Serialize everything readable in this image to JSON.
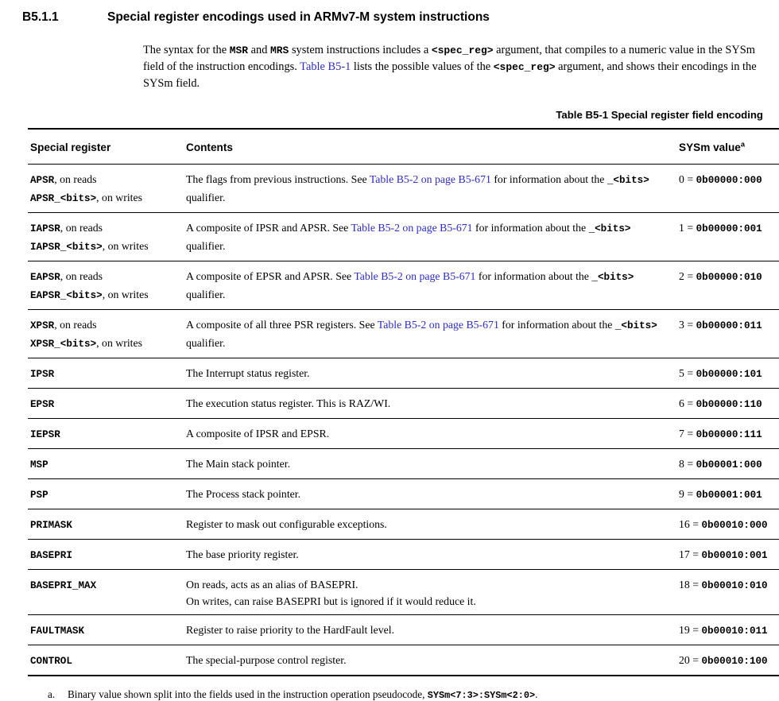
{
  "colors": {
    "link": "#2b2bcd"
  },
  "heading": {
    "number": "B5.1.1",
    "title": "Special register encodings used in ARMv7-M system instructions"
  },
  "intro": [
    {
      "t": "The syntax for the "
    },
    {
      "t": "MSR",
      "c": "mono"
    },
    {
      "t": " and "
    },
    {
      "t": "MRS",
      "c": "mono"
    },
    {
      "t": " system instructions includes a "
    },
    {
      "t": "<spec_reg>",
      "c": "mono"
    },
    {
      "t": " argument, that compiles to a numeric value in the SYSm field of the instruction encodings. "
    },
    {
      "t": "Table B5-1",
      "c": "link"
    },
    {
      "t": " lists the possible values of the "
    },
    {
      "t": "<spec_reg>",
      "c": "mono"
    },
    {
      "t": " argument, and shows their encodings in the SYSm field."
    }
  ],
  "table": {
    "caption": "Table B5-1 Special register field encoding",
    "headers": [
      [
        {
          "t": "Special register"
        }
      ],
      [
        {
          "t": "Contents"
        }
      ],
      [
        {
          "t": "SYSm value"
        },
        {
          "t": "a",
          "c": "sup"
        }
      ]
    ],
    "rows": [
      {
        "register": [
          {
            "t": "APSR",
            "c": "mono"
          },
          {
            "t": ", on reads"
          },
          {
            "br": true
          },
          {
            "t": "APSR_<bits>",
            "c": "mono"
          },
          {
            "t": ", on writes"
          }
        ],
        "contents": [
          {
            "t": "The flags from previous instructions. See "
          },
          {
            "t": "Table B5-2 on page B5-671",
            "c": "link"
          },
          {
            "t": " for information about the "
          },
          {
            "t": "_<bits>",
            "c": "mono"
          },
          {
            "t": " qualifier."
          }
        ],
        "sysm": [
          {
            "t": "0 = "
          },
          {
            "t": "0b00000:000",
            "c": "mono"
          }
        ]
      },
      {
        "register": [
          {
            "t": "IAPSR",
            "c": "mono"
          },
          {
            "t": ", on reads"
          },
          {
            "br": true
          },
          {
            "t": "IAPSR_<bits>",
            "c": "mono"
          },
          {
            "t": ", on writes"
          }
        ],
        "contents": [
          {
            "t": "A composite of IPSR and APSR. See "
          },
          {
            "t": "Table B5-2 on page B5-671",
            "c": "link"
          },
          {
            "t": " for information about the "
          },
          {
            "t": "_<bits>",
            "c": "mono"
          },
          {
            "t": " qualifier."
          }
        ],
        "sysm": [
          {
            "t": "1 = "
          },
          {
            "t": "0b00000:001",
            "c": "mono"
          }
        ]
      },
      {
        "register": [
          {
            "t": "EAPSR",
            "c": "mono"
          },
          {
            "t": ", on reads"
          },
          {
            "br": true
          },
          {
            "t": "EAPSR_<bits>",
            "c": "mono"
          },
          {
            "t": ", on writes"
          }
        ],
        "contents": [
          {
            "t": "A composite of EPSR and APSR. See "
          },
          {
            "t": "Table B5-2 on page B5-671",
            "c": "link"
          },
          {
            "t": " for information about the "
          },
          {
            "t": "_<bits>",
            "c": "mono"
          },
          {
            "t": " qualifier."
          }
        ],
        "sysm": [
          {
            "t": "2 = "
          },
          {
            "t": "0b00000:010",
            "c": "mono"
          }
        ]
      },
      {
        "register": [
          {
            "t": "XPSR",
            "c": "mono"
          },
          {
            "t": ", on reads"
          },
          {
            "br": true
          },
          {
            "t": "XPSR_<bits>",
            "c": "mono"
          },
          {
            "t": ", on writes"
          }
        ],
        "contents": [
          {
            "t": "A composite of all three PSR registers. See "
          },
          {
            "t": "Table B5-2 on page B5-671",
            "c": "link"
          },
          {
            "t": " for information about the "
          },
          {
            "t": "_<bits>",
            "c": "mono"
          },
          {
            "t": " qualifier."
          }
        ],
        "sysm": [
          {
            "t": "3 = "
          },
          {
            "t": "0b00000:011",
            "c": "mono"
          }
        ]
      },
      {
        "register": [
          {
            "t": "IPSR",
            "c": "mono"
          }
        ],
        "contents": [
          {
            "t": "The Interrupt status register."
          }
        ],
        "sysm": [
          {
            "t": "5 = "
          },
          {
            "t": "0b00000:101",
            "c": "mono"
          }
        ]
      },
      {
        "register": [
          {
            "t": "EPSR",
            "c": "mono"
          }
        ],
        "contents": [
          {
            "t": "The execution status register. This is RAZ/WI."
          }
        ],
        "sysm": [
          {
            "t": "6 = "
          },
          {
            "t": "0b00000:110",
            "c": "mono"
          }
        ]
      },
      {
        "register": [
          {
            "t": "IEPSR",
            "c": "mono"
          }
        ],
        "contents": [
          {
            "t": "A composite of IPSR and EPSR."
          }
        ],
        "sysm": [
          {
            "t": "7 = "
          },
          {
            "t": "0b00000:111",
            "c": "mono"
          }
        ]
      },
      {
        "register": [
          {
            "t": "MSP",
            "c": "mono"
          }
        ],
        "contents": [
          {
            "t": "The Main stack pointer."
          }
        ],
        "sysm": [
          {
            "t": "8 = "
          },
          {
            "t": "0b00001:000",
            "c": "mono"
          }
        ]
      },
      {
        "register": [
          {
            "t": "PSP",
            "c": "mono"
          }
        ],
        "contents": [
          {
            "t": "The Process stack pointer."
          }
        ],
        "sysm": [
          {
            "t": "9 = "
          },
          {
            "t": "0b00001:001",
            "c": "mono"
          }
        ]
      },
      {
        "register": [
          {
            "t": "PRIMASK",
            "c": "mono"
          }
        ],
        "contents": [
          {
            "t": "Register to mask out configurable exceptions."
          }
        ],
        "sysm": [
          {
            "t": "16 = "
          },
          {
            "t": "0b00010:000",
            "c": "mono"
          }
        ]
      },
      {
        "register": [
          {
            "t": "BASEPRI",
            "c": "mono"
          }
        ],
        "contents": [
          {
            "t": "The base priority register."
          }
        ],
        "sysm": [
          {
            "t": "17 = "
          },
          {
            "t": "0b00010:001",
            "c": "mono"
          }
        ]
      },
      {
        "register": [
          {
            "t": "BASEPRI_MAX",
            "c": "mono"
          }
        ],
        "contents": [
          {
            "t": "On reads, acts as an alias of BASEPRI."
          },
          {
            "br": true
          },
          {
            "t": "On writes, can raise BASEPRI but is ignored if it would reduce it."
          }
        ],
        "sysm": [
          {
            "t": "18 = "
          },
          {
            "t": "0b00010:010",
            "c": "mono"
          }
        ]
      },
      {
        "register": [
          {
            "t": "FAULTMASK",
            "c": "mono"
          }
        ],
        "contents": [
          {
            "t": "Register to raise priority to the HardFault level."
          }
        ],
        "sysm": [
          {
            "t": "19 = "
          },
          {
            "t": "0b00010:011",
            "c": "mono"
          }
        ]
      },
      {
        "register": [
          {
            "t": "CONTROL",
            "c": "mono"
          }
        ],
        "contents": [
          {
            "t": "The special-purpose control register."
          }
        ],
        "sysm": [
          {
            "t": "20 = "
          },
          {
            "t": "0b00010:100",
            "c": "mono"
          }
        ]
      }
    ]
  },
  "footnote": {
    "marker": "a.",
    "segments": [
      {
        "t": "Binary value shown split into the fields used in the instruction operation pseudocode, "
      },
      {
        "t": "SYSm<7:3>:SYSm<2:0>",
        "c": "mono"
      },
      {
        "t": "."
      }
    ]
  }
}
